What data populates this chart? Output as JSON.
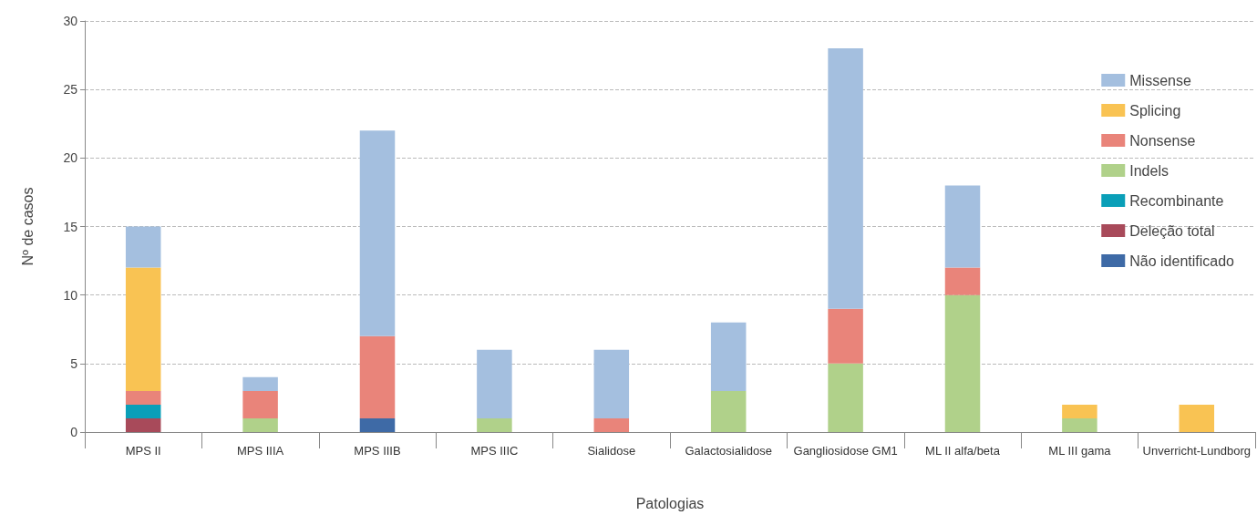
{
  "chart_data": {
    "type": "bar",
    "stacked": true,
    "xlabel": "Patologias",
    "ylabel": "Nº de casos",
    "categories": [
      "MPS II",
      "MPS IIIA",
      "MPS IIIB",
      "MPS IIIC",
      "Sialidose",
      "Galactosialidose",
      "Gangliosidose GM1",
      "ML II alfa/beta",
      "ML III gama",
      "Unverricht-Lundborg"
    ],
    "series": [
      {
        "name": "Não identificado",
        "color": "#3e6aa6",
        "values": [
          0,
          0,
          1,
          0,
          0,
          0,
          0,
          0,
          0,
          0
        ]
      },
      {
        "name": "Deleção total",
        "color": "#a84a5a",
        "values": [
          1,
          0,
          0,
          0,
          0,
          0,
          0,
          0,
          0,
          0
        ]
      },
      {
        "name": "Recombinante",
        "color": "#0a9fb8",
        "values": [
          1,
          0,
          0,
          0,
          0,
          0,
          0,
          0,
          0,
          0
        ]
      },
      {
        "name": "Indels",
        "color": "#b0d18a",
        "values": [
          0,
          1,
          0,
          1,
          0,
          3,
          5,
          10,
          1,
          0
        ]
      },
      {
        "name": "Nonsense",
        "color": "#e9847a",
        "values": [
          1,
          2,
          6,
          0,
          1,
          0,
          4,
          2,
          0,
          0
        ]
      },
      {
        "name": "Splicing",
        "color": "#f9c353",
        "values": [
          9,
          0,
          0,
          0,
          0,
          0,
          0,
          0,
          1,
          2
        ]
      },
      {
        "name": "Missense",
        "color": "#a4bfdf",
        "values": [
          3,
          1,
          15,
          5,
          5,
          5,
          19,
          6,
          0,
          0
        ]
      }
    ],
    "ylim": [
      0,
      30
    ],
    "yticks": [
      0,
      5,
      10,
      15,
      20,
      25,
      30
    ],
    "grid": "y",
    "legend": "top right"
  }
}
